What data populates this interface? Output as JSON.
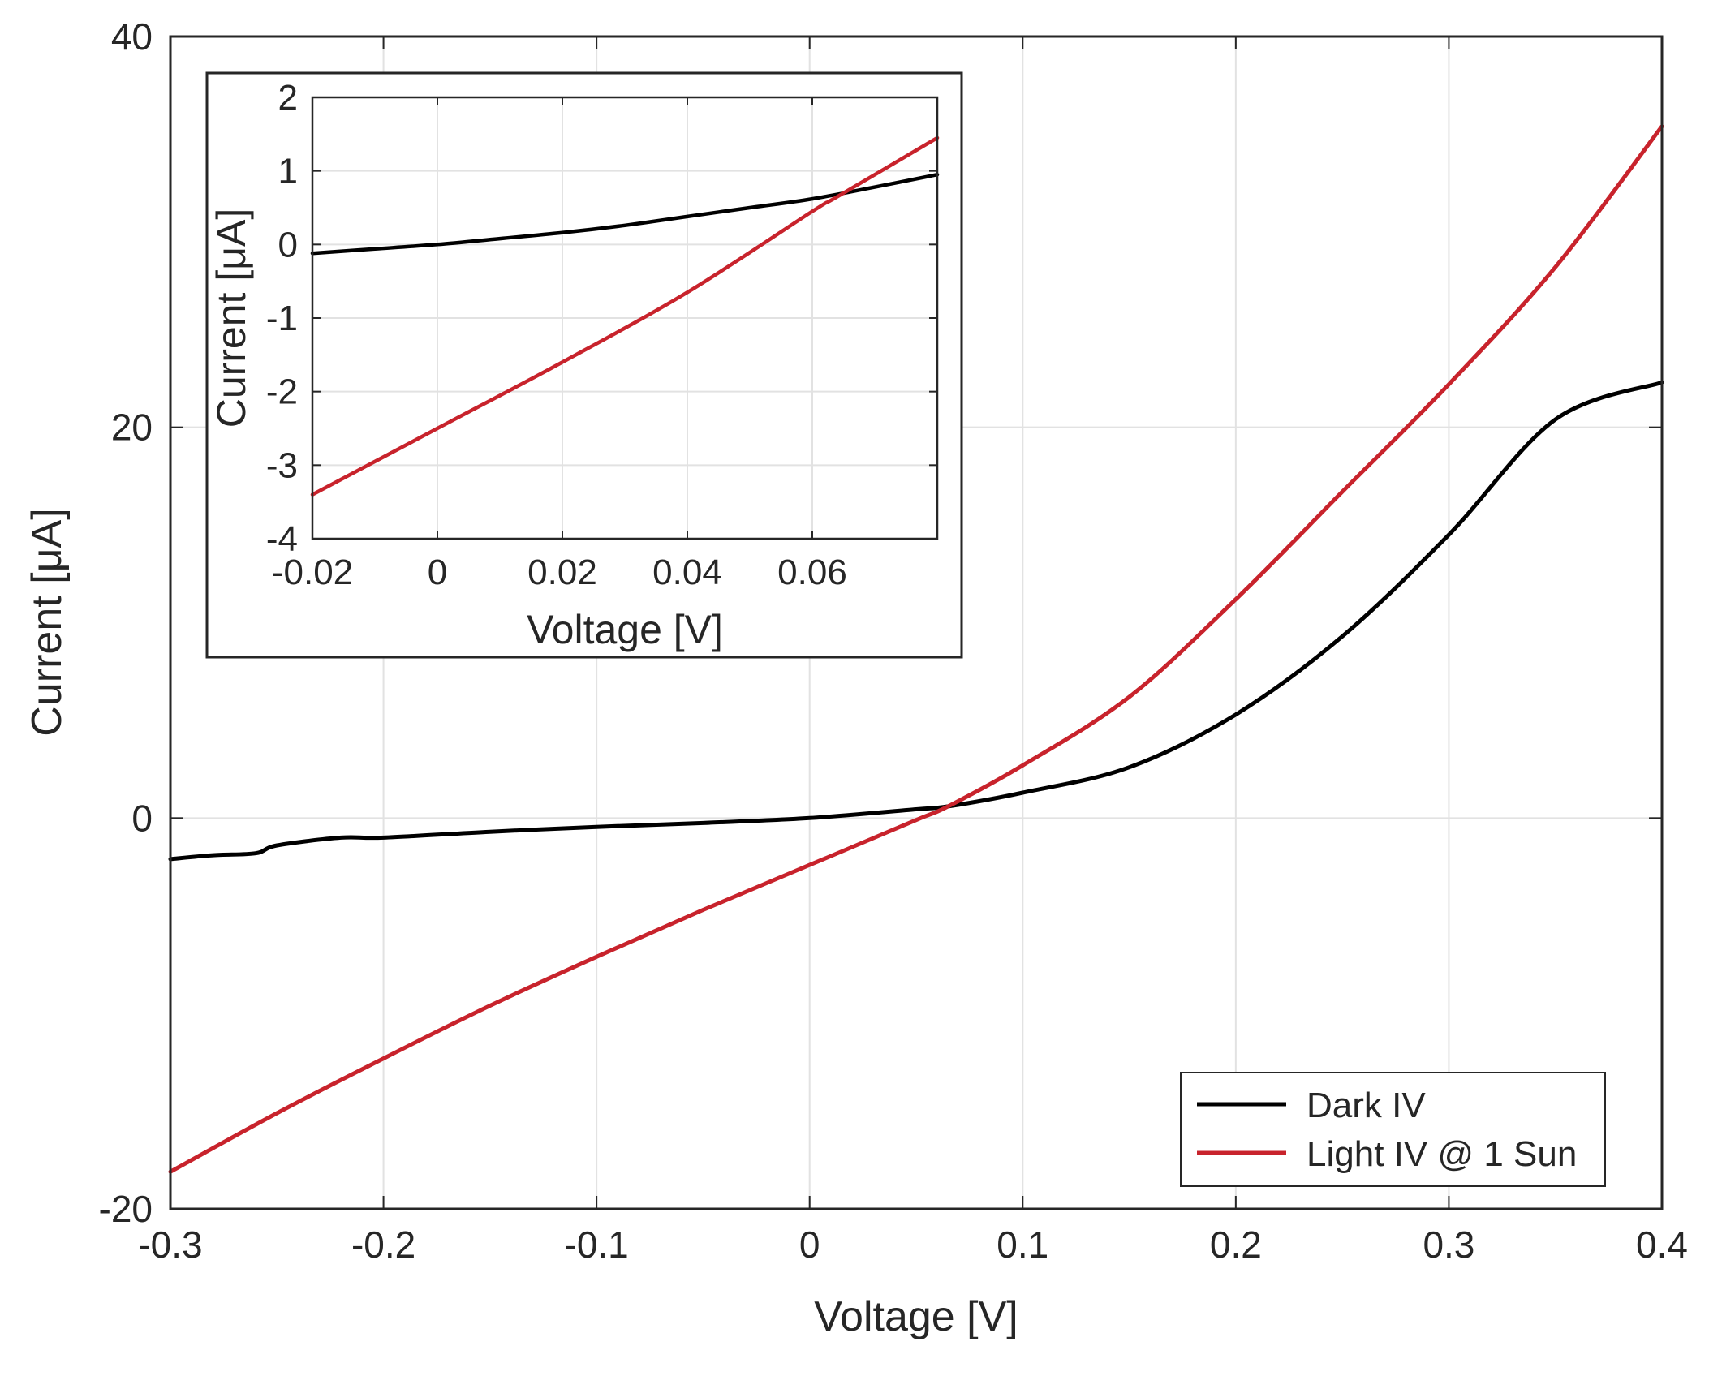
{
  "chart_data": [
    {
      "id": "main",
      "type": "line",
      "title": "",
      "xlabel": "Voltage [V]",
      "ylabel": "Current [μA]",
      "xlim": [
        -0.3,
        0.4
      ],
      "ylim": [
        -20,
        40
      ],
      "xticks": [
        -0.3,
        -0.2,
        -0.1,
        0,
        0.1,
        0.2,
        0.3,
        0.4
      ],
      "xtick_labels": [
        "-0.3",
        "-0.2",
        "-0.1",
        "0",
        "0.1",
        "0.2",
        "0.3",
        "0.4"
      ],
      "yticks": [
        -20,
        0,
        20,
        40
      ],
      "ytick_labels": [
        "-20",
        "0",
        "20",
        "40"
      ],
      "grid": true,
      "legend_position": "bottom-right",
      "series": [
        {
          "name": "Dark IV",
          "color": "#000000",
          "x": [
            -0.3,
            -0.28,
            -0.26,
            -0.25,
            -0.22,
            -0.2,
            -0.15,
            -0.1,
            -0.05,
            0,
            0.05,
            0.065,
            0.1,
            0.15,
            0.2,
            0.25,
            0.3,
            0.35,
            0.4
          ],
          "y": [
            -2.1,
            -1.9,
            -1.8,
            -1.4,
            -1.0,
            -1.0,
            -0.7,
            -0.45,
            -0.25,
            0,
            0.45,
            0.6,
            1.3,
            2.6,
            5.3,
            9.3,
            14.5,
            20.4,
            22.3
          ]
        },
        {
          "name": "Light IV @ 1 Sun",
          "color": "#c8232c",
          "x": [
            -0.3,
            -0.25,
            -0.2,
            -0.15,
            -0.1,
            -0.05,
            0,
            0.05,
            0.065,
            0.1,
            0.15,
            0.2,
            0.25,
            0.3,
            0.35,
            0.4
          ],
          "y": [
            -18.1,
            -15.1,
            -12.3,
            -9.6,
            -7.1,
            -4.7,
            -2.4,
            -0.1,
            0.6,
            2.7,
            6.2,
            11.2,
            16.7,
            22.2,
            28.2,
            35.4
          ]
        }
      ]
    },
    {
      "id": "inset",
      "type": "line",
      "title": "",
      "xlabel": "Voltage [V]",
      "ylabel": "Current [μA]",
      "xlim": [
        -0.02,
        0.08
      ],
      "ylim": [
        -4,
        2
      ],
      "xticks": [
        -0.02,
        0,
        0.02,
        0.04,
        0.06
      ],
      "xtick_labels": [
        "-0.02",
        "0",
        "0.02",
        "0.04",
        "0.06"
      ],
      "yticks": [
        -4,
        -3,
        -2,
        -1,
        0,
        1,
        2
      ],
      "ytick_labels": [
        "-4",
        "-3",
        "-2",
        "-1",
        "0",
        "1",
        "2"
      ],
      "grid": true,
      "series": [
        {
          "name": "Dark IV",
          "color": "#000000",
          "x": [
            -0.02,
            -0.01,
            0,
            0.01,
            0.02,
            0.03,
            0.04,
            0.05,
            0.06,
            0.07,
            0.08
          ],
          "y": [
            -0.12,
            -0.06,
            0.0,
            0.08,
            0.16,
            0.26,
            0.38,
            0.5,
            0.62,
            0.78,
            0.95
          ]
        },
        {
          "name": "Light IV @ 1 Sun",
          "color": "#c8232c",
          "x": [
            -0.02,
            0,
            0.02,
            0.04,
            0.06,
            0.064,
            0.08
          ],
          "y": [
            -3.4,
            -2.5,
            -1.6,
            -0.65,
            0.45,
            0.65,
            1.45
          ]
        }
      ]
    }
  ]
}
